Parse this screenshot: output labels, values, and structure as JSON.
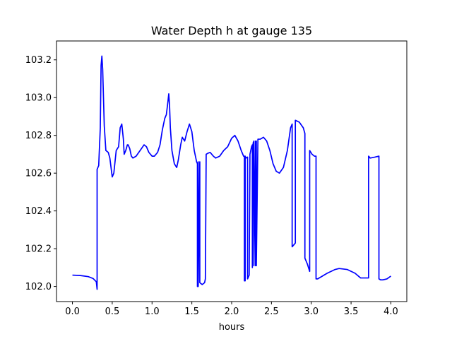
{
  "chart_data": {
    "type": "line",
    "title": "Water Depth h at gauge 135",
    "xlabel": "hours",
    "ylabel": "",
    "xlim": [
      -0.2,
      4.2
    ],
    "ylim": [
      101.92,
      103.3
    ],
    "xticks": [
      0.0,
      0.5,
      1.0,
      1.5,
      2.0,
      2.5,
      3.0,
      3.5,
      4.0
    ],
    "xtick_labels": [
      "0.0",
      "0.5",
      "1.0",
      "1.5",
      "2.0",
      "2.5",
      "3.0",
      "3.5",
      "4.0"
    ],
    "yticks": [
      102.0,
      102.2,
      102.4,
      102.6,
      102.8,
      103.0,
      103.2
    ],
    "ytick_labels": [
      "102.0",
      "102.2",
      "102.4",
      "102.6",
      "102.8",
      "103.0",
      "103.2"
    ],
    "grid": false,
    "series": [
      {
        "color": "#0000ff",
        "x": [
          0.0,
          0.1,
          0.2,
          0.26,
          0.3,
          0.31,
          0.31,
          0.33,
          0.35,
          0.36,
          0.37,
          0.38,
          0.39,
          0.4,
          0.42,
          0.45,
          0.47,
          0.5,
          0.52,
          0.55,
          0.58,
          0.6,
          0.62,
          0.64,
          0.65,
          0.67,
          0.69,
          0.7,
          0.72,
          0.74,
          0.76,
          0.8,
          0.85,
          0.9,
          0.93,
          0.96,
          1.0,
          1.03,
          1.07,
          1.1,
          1.13,
          1.16,
          1.18,
          1.2,
          1.21,
          1.22,
          1.23,
          1.25,
          1.28,
          1.31,
          1.33,
          1.36,
          1.38,
          1.41,
          1.44,
          1.47,
          1.5,
          1.53,
          1.56,
          1.57,
          1.57,
          1.58,
          1.58,
          1.6,
          1.6,
          1.63,
          1.66,
          1.67,
          1.68,
          1.7,
          1.73,
          1.77,
          1.8,
          1.85,
          1.9,
          1.95,
          2.0,
          2.04,
          2.08,
          2.12,
          2.15,
          2.16,
          2.16,
          2.17,
          2.17,
          2.18,
          2.2,
          2.2,
          2.22,
          2.23,
          2.25,
          2.26,
          2.26,
          2.27,
          2.28,
          2.28,
          2.3,
          2.3,
          2.31,
          2.31,
          2.33,
          2.36,
          2.4,
          2.44,
          2.48,
          2.52,
          2.56,
          2.6,
          2.65,
          2.7,
          2.74,
          2.76,
          2.76,
          2.78,
          2.8,
          2.8,
          2.85,
          2.9,
          2.92,
          2.92,
          2.95,
          2.98,
          2.98,
          3.01,
          3.04,
          3.06,
          3.06,
          3.08,
          3.12,
          3.2,
          3.3,
          3.35,
          3.45,
          3.55,
          3.62,
          3.72,
          3.72,
          3.74,
          3.8,
          3.85,
          3.85,
          3.87,
          3.9,
          3.95,
          4.0
        ],
        "y": [
          102.06,
          102.058,
          102.052,
          102.042,
          102.025,
          101.985,
          102.62,
          102.64,
          102.84,
          103.17,
          103.22,
          103.15,
          103.0,
          102.85,
          102.72,
          102.71,
          102.68,
          102.58,
          102.6,
          102.72,
          102.74,
          102.84,
          102.86,
          102.78,
          102.7,
          102.72,
          102.75,
          102.75,
          102.73,
          102.69,
          102.68,
          102.69,
          102.72,
          102.75,
          102.74,
          102.71,
          102.69,
          102.69,
          102.71,
          102.75,
          102.83,
          102.89,
          102.91,
          102.98,
          103.02,
          102.96,
          102.84,
          102.72,
          102.65,
          102.63,
          102.67,
          102.75,
          102.79,
          102.77,
          102.82,
          102.86,
          102.82,
          102.72,
          102.66,
          102.65,
          102.0,
          102.66,
          102.0,
          102.66,
          102.02,
          102.01,
          102.02,
          102.04,
          102.7,
          102.705,
          102.71,
          102.69,
          102.68,
          102.69,
          102.72,
          102.74,
          102.785,
          102.8,
          102.77,
          102.72,
          102.69,
          102.69,
          102.03,
          102.03,
          102.69,
          102.68,
          102.685,
          102.04,
          102.06,
          102.7,
          102.74,
          102.75,
          102.1,
          102.76,
          102.77,
          102.11,
          102.77,
          102.11,
          102.77,
          102.11,
          102.78,
          102.78,
          102.79,
          102.77,
          102.72,
          102.65,
          102.61,
          102.6,
          102.63,
          102.72,
          102.84,
          102.86,
          102.21,
          102.22,
          102.23,
          102.88,
          102.87,
          102.84,
          102.81,
          102.15,
          102.12,
          102.08,
          102.72,
          102.7,
          102.69,
          102.69,
          102.04,
          102.04,
          102.05,
          102.07,
          102.09,
          102.095,
          102.09,
          102.07,
          102.045,
          102.045,
          102.69,
          102.68,
          102.685,
          102.69,
          102.04,
          102.035,
          102.035,
          102.04,
          102.055
        ]
      }
    ]
  }
}
